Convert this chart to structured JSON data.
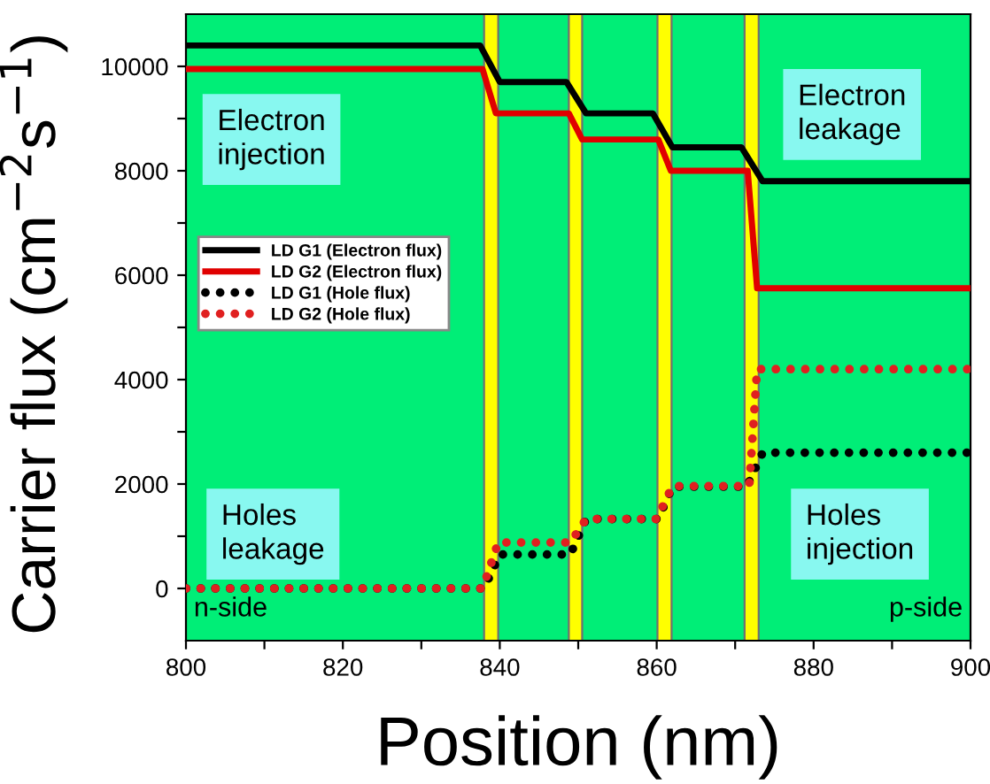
{
  "chart_data": {
    "type": "line",
    "xlabel": "Position (nm)",
    "ylabel": "Carrier flux (cm$^{−2}$s$^{−1}$)",
    "xlim": [
      800,
      900
    ],
    "ylim": [
      -1000,
      11000
    ],
    "xticks": [
      800,
      {
        "value": 810,
        "label": null
      },
      820,
      {
        "value": 830,
        "label": null
      },
      840,
      {
        "value": 850,
        "label": null
      },
      860,
      {
        "value": 870,
        "label": null
      },
      880,
      {
        "value": 890,
        "label": null
      },
      900
    ],
    "yticks": [
      0,
      {
        "value": 1000,
        "label": null
      },
      2000,
      {
        "value": 3000,
        "label": null
      },
      4000,
      {
        "value": 5000,
        "label": null
      },
      6000,
      {
        "value": 7000,
        "label": null
      },
      8000,
      {
        "value": 9000,
        "label": null
      },
      10000
    ],
    "grid": false,
    "legend": "left",
    "series": [
      {
        "name": "LD G1 (Electron flux)",
        "color": "#000000",
        "line_style": "solid",
        "x": [
          800,
          837.5,
          840,
          848.5,
          851,
          859.5,
          862,
          870.8,
          873.5,
          900
        ],
        "values": [
          10400,
          10400,
          9700,
          9700,
          9100,
          9100,
          8450,
          8450,
          7800,
          7800
        ]
      },
      {
        "name": "LD G2 (Electron flux)",
        "color": "#e00000",
        "line_style": "solid",
        "x": [
          800,
          837.8,
          839.5,
          848.8,
          850.5,
          860.2,
          861.8,
          871.6,
          872.8,
          900
        ],
        "values": [
          9950,
          9950,
          9100,
          9100,
          8600,
          8600,
          8000,
          8000,
          5750,
          5750
        ]
      },
      {
        "name": "LD G1 (Hole flux)",
        "color": "#000000",
        "line_style": "dotted",
        "x": [
          800,
          838,
          840,
          849,
          851,
          860.2,
          862,
          871.5,
          873.5,
          900
        ],
        "values": [
          0,
          0,
          650,
          650,
          1330,
          1330,
          1950,
          1950,
          2600,
          2600
        ]
      },
      {
        "name": "LD G2 (Hole flux)",
        "color": "#e02020",
        "line_style": "dotted",
        "x": [
          800,
          837.8,
          839.8,
          849,
          851,
          860,
          862,
          871.8,
          872.8,
          900
        ],
        "values": [
          0,
          0,
          880,
          880,
          1330,
          1330,
          1960,
          1960,
          4200,
          4200
        ]
      }
    ],
    "bands": [
      {
        "axis": "x",
        "from": 838,
        "to": 839.8,
        "color": "#ffff00"
      },
      {
        "axis": "x",
        "from": 848.8,
        "to": 850.5,
        "color": "#ffff00"
      },
      {
        "axis": "x",
        "from": 860.1,
        "to": 861.9,
        "color": "#ffff00"
      },
      {
        "axis": "x",
        "from": 871.2,
        "to": 873,
        "color": "#ffff00"
      }
    ],
    "annotations": [
      "Electron\ninjection",
      "Electron\nleakage",
      "Holes\nleakage",
      "Holes\ninjection",
      "n-side",
      "p-side"
    ]
  }
}
